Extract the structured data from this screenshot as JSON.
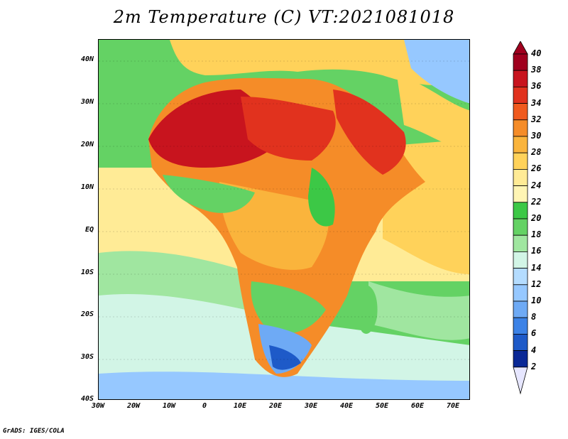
{
  "title": "2m Temperature (C) VT:2021081018",
  "credit": "GrADS: IGES/COLA",
  "map": {
    "lat_labels": [
      "40N",
      "30N",
      "20N",
      "10N",
      "EQ",
      "10S",
      "20S",
      "30S",
      "40S"
    ],
    "lon_labels": [
      "30W",
      "20W",
      "10W",
      "0",
      "10E",
      "20E",
      "30E",
      "40E",
      "50E",
      "60E",
      "70E"
    ]
  },
  "colorbar": {
    "labels": [
      "40",
      "38",
      "36",
      "34",
      "32",
      "30",
      "28",
      "26",
      "24",
      "22",
      "20",
      "18",
      "16",
      "14",
      "12",
      "10",
      "8",
      "6",
      "4",
      "2"
    ],
    "colors": [
      "#a0001e",
      "#c8141e",
      "#e1321e",
      "#f05a1e",
      "#f58c28",
      "#fab43c",
      "#ffd25a",
      "#ffeb96",
      "#fff5b4",
      "#3cc846",
      "#64d264",
      "#a0e6a0",
      "#d2f5e6",
      "#b4dcff",
      "#96c8ff",
      "#6eaaf5",
      "#3c82e6",
      "#1e5ac8",
      "#0a2896",
      "#e6e6ff"
    ]
  },
  "palette": {
    "ocean_cool": "#a0e6a0",
    "ocean_cooler": "#d2f5e6",
    "ocean_coldest": "#96c8ff",
    "ocean_warm": "#fff5b4",
    "ocean_warmer": "#ffd25a",
    "ocean_atlantic_mid": "#64d264"
  }
}
